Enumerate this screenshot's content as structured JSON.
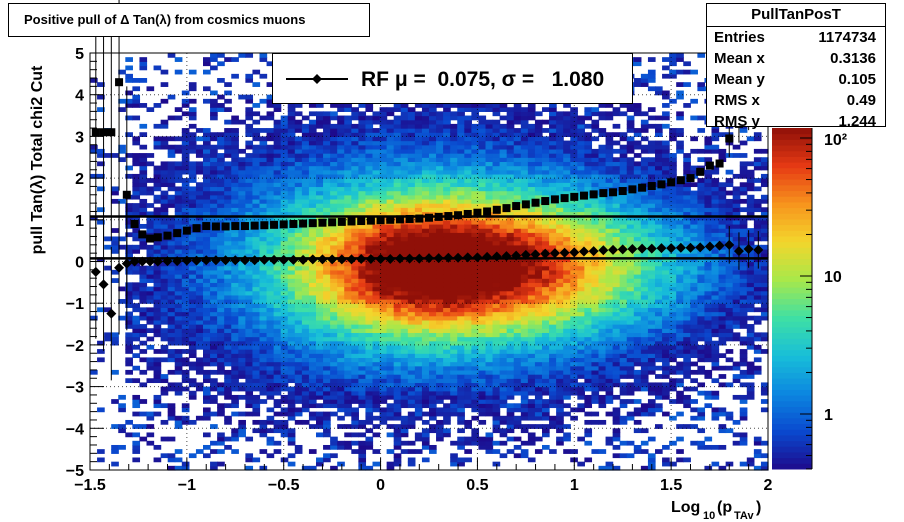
{
  "title": "Positive pull of Δ Tan(λ) from cosmics muons",
  "stats": {
    "name": "PullTanPosT",
    "rows": [
      {
        "label": "Entries",
        "value": "1174734"
      },
      {
        "label": "Mean x",
        "value": "0.3136"
      },
      {
        "label": "Mean y",
        "value": "0.105"
      },
      {
        "label": "RMS x",
        "value": "0.49"
      },
      {
        "label": "RMS y",
        "value": "1.244"
      }
    ]
  },
  "legend": {
    "text": "RF μ =  0.075, σ =   1.080"
  },
  "chart_data": {
    "type": "heatmap",
    "title": "Positive pull of Δ Tan(λ) from cosmics muons",
    "xlabel": "Log10(pTAv)",
    "ylabel": "pull Tan(λ)  Total chi2 Cut",
    "xlim": [
      -1.5,
      2
    ],
    "ylim": [
      -5,
      5
    ],
    "x_ticks": [
      "−1.5",
      "−1",
      "−0.5",
      "0",
      "0.5",
      "1",
      "1.5",
      "2"
    ],
    "y_ticks": [
      "−5",
      "−4",
      "−3",
      "−2",
      "−1",
      "0",
      "1",
      "2",
      "3",
      "4",
      "5"
    ],
    "z_scale": "log",
    "z_ticks": [
      "1",
      "10",
      "10²"
    ],
    "grid": true,
    "color_palette": [
      "#1d0a8c",
      "#0a49cf",
      "#0c87e0",
      "#18bfd8",
      "#3fe0a4",
      "#a8e84a",
      "#f3d62c",
      "#f7941d",
      "#e63a14",
      "#901008"
    ],
    "density_peak": {
      "x": 0.3,
      "y": -0.1
    },
    "series": [
      {
        "name": "sigma",
        "marker": "square",
        "x": [
          -1.47,
          -1.43,
          -1.39,
          -1.35,
          -1.31,
          -1.27,
          -1.23,
          -1.19,
          -1.15,
          -1.1,
          -1.05,
          -1.0,
          -0.95,
          -0.9,
          -0.85,
          -0.8,
          -0.75,
          -0.7,
          -0.65,
          -0.6,
          -0.55,
          -0.5,
          -0.45,
          -0.4,
          -0.35,
          -0.3,
          -0.25,
          -0.2,
          -0.15,
          -0.1,
          -0.05,
          0.0,
          0.05,
          0.1,
          0.15,
          0.2,
          0.25,
          0.3,
          0.35,
          0.4,
          0.45,
          0.5,
          0.55,
          0.6,
          0.65,
          0.7,
          0.75,
          0.8,
          0.85,
          0.9,
          0.95,
          1.0,
          1.05,
          1.1,
          1.15,
          1.2,
          1.25,
          1.3,
          1.35,
          1.4,
          1.45,
          1.5,
          1.55,
          1.6,
          1.65,
          1.7,
          1.75,
          1.8,
          1.85,
          1.9,
          1.95
        ],
        "y": [
          3.1,
          3.1,
          3.1,
          4.3,
          1.6,
          0.9,
          0.65,
          0.55,
          0.58,
          0.62,
          0.68,
          0.74,
          0.8,
          0.85,
          0.84,
          0.84,
          0.85,
          0.85,
          0.86,
          0.87,
          0.88,
          0.89,
          0.9,
          0.91,
          0.92,
          0.93,
          0.94,
          0.95,
          0.96,
          0.97,
          0.98,
          0.99,
          1.0,
          1.01,
          1.02,
          1.03,
          1.05,
          1.07,
          1.09,
          1.11,
          1.14,
          1.17,
          1.2,
          1.24,
          1.28,
          1.33,
          1.37,
          1.41,
          1.45,
          1.49,
          1.52,
          1.55,
          1.58,
          1.61,
          1.64,
          1.66,
          1.69,
          1.73,
          1.77,
          1.81,
          1.85,
          1.9,
          1.95,
          2.0,
          2.15,
          2.3,
          2.35,
          2.95,
          3.3,
          3.6,
          4.05
        ]
      },
      {
        "name": "mean",
        "marker": "diamond",
        "x": [
          -1.47,
          -1.43,
          -1.39,
          -1.35,
          -1.31,
          -1.27,
          -1.23,
          -1.19,
          -1.15,
          -1.1,
          -1.05,
          -1.0,
          -0.95,
          -0.9,
          -0.85,
          -0.8,
          -0.75,
          -0.7,
          -0.65,
          -0.6,
          -0.55,
          -0.5,
          -0.45,
          -0.4,
          -0.35,
          -0.3,
          -0.25,
          -0.2,
          -0.15,
          -0.1,
          -0.05,
          0.0,
          0.05,
          0.1,
          0.15,
          0.2,
          0.25,
          0.3,
          0.35,
          0.4,
          0.45,
          0.5,
          0.55,
          0.6,
          0.65,
          0.7,
          0.75,
          0.8,
          0.85,
          0.9,
          0.95,
          1.0,
          1.05,
          1.1,
          1.15,
          1.2,
          1.25,
          1.3,
          1.35,
          1.4,
          1.45,
          1.5,
          1.55,
          1.6,
          1.65,
          1.7,
          1.75,
          1.8,
          1.85,
          1.9,
          1.95
        ],
        "y": [
          -0.25,
          -0.55,
          -1.25,
          -0.15,
          -0.05,
          0.0,
          0.0,
          0.0,
          0.0,
          0.01,
          0.01,
          0.02,
          0.02,
          0.03,
          0.03,
          0.03,
          0.03,
          0.03,
          0.03,
          0.04,
          0.04,
          0.04,
          0.04,
          0.04,
          0.05,
          0.05,
          0.05,
          0.05,
          0.05,
          0.06,
          0.06,
          0.06,
          0.06,
          0.07,
          0.07,
          0.07,
          0.08,
          0.08,
          0.09,
          0.09,
          0.1,
          0.1,
          0.11,
          0.12,
          0.13,
          0.14,
          0.16,
          0.17,
          0.19,
          0.2,
          0.21,
          0.22,
          0.24,
          0.25,
          0.27,
          0.28,
          0.29,
          0.3,
          0.31,
          0.31,
          0.32,
          0.32,
          0.33,
          0.33,
          0.34,
          0.36,
          0.38,
          0.4,
          0.25,
          0.3,
          0.28
        ],
        "fit_line": 0.075
      }
    ],
    "fit_lines": {
      "mu": 0.075,
      "sigma": 1.08
    }
  }
}
